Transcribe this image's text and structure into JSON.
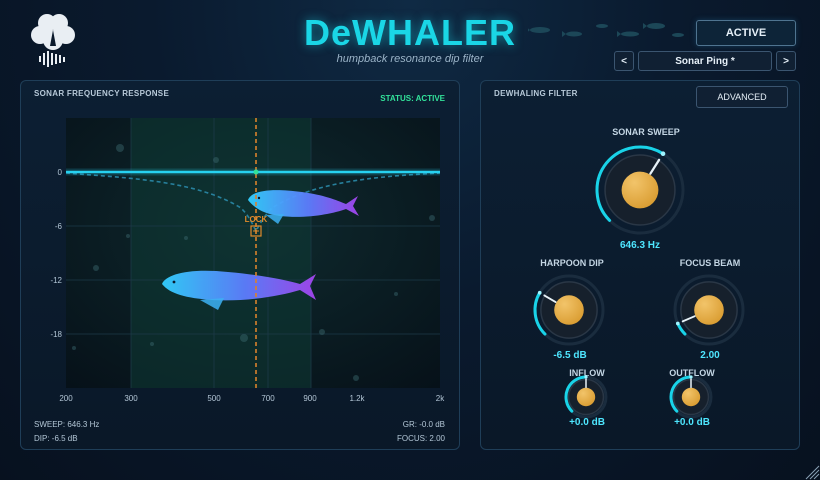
{
  "app": {
    "title": "DeWHALER",
    "subtitle": "humpback resonance dip filter"
  },
  "header": {
    "active_label": "ACTIVE",
    "preset_prev": "<",
    "preset_next": ">",
    "preset_name": "Sonar Ping *"
  },
  "freq_panel": {
    "title": "SONAR FREQUENCY RESPONSE",
    "status": "STATUS: ACTIVE",
    "lock_label": "LOCK",
    "y_ticks": [
      "0",
      "-6",
      "-12",
      "-18"
    ],
    "x_ticks": [
      "200",
      "300",
      "500",
      "700",
      "900",
      "1.2k",
      "2k"
    ],
    "readouts": {
      "sweep": "SWEEP: 646.3 Hz",
      "dip": "DIP: -6.5 dB",
      "gr": "GR: -0.0 dB",
      "focus": "FOCUS: 2.00"
    }
  },
  "filter_panel": {
    "title": "DEWHALING FILTER",
    "advanced_label": "ADVANCED",
    "knobs": {
      "sonar_sweep": {
        "label": "SONAR SWEEP",
        "value": "646.3 Hz",
        "level": 0.62
      },
      "harpoon_dip": {
        "label": "HARPOON DIP",
        "value": "-6.5 dB",
        "level": 0.28
      },
      "focus_beam": {
        "label": "FOCUS BEAM",
        "value": "2.00",
        "level": 0.08
      },
      "inflow": {
        "label": "INFLOW",
        "value": "+0.0 dB",
        "level": 0.5
      },
      "outflow": {
        "label": "OUTFLOW",
        "value": "+0.0 dB",
        "level": 0.5
      }
    }
  },
  "colors": {
    "accent": "#1ad6e6",
    "status": "#32e29a",
    "knob_arc": "#19d3e8",
    "knob_cap": "#d89a2e",
    "lock": "#e08a2c",
    "whale_start": "#33d0ff",
    "whale_end": "#a545f0"
  },
  "icons": {
    "logo": "clover-whale-logo",
    "school": "fish-school-icon",
    "grip": "resize-grip-icon"
  }
}
